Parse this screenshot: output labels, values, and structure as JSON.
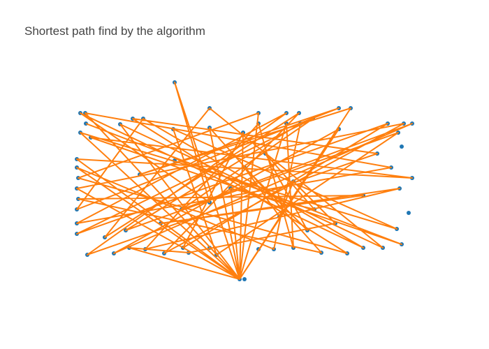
{
  "chart_data": {
    "type": "scatter",
    "title": "Shortest path find by the algorithm",
    "xlim": [
      0,
      500
    ],
    "ylim": [
      0,
      320
    ],
    "series": [
      {
        "mode": "markers",
        "color": "#1f77b4",
        "x": [
          150,
          15,
          22,
          200,
          270,
          310,
          328,
          385,
          402,
          23,
          90,
          105,
          72,
          200,
          270,
          310,
          330,
          348,
          455,
          478,
          490,
          15,
          30,
          148,
          248,
          385,
          470,
          10,
          10,
          12,
          10,
          12,
          10,
          10,
          10,
          25,
          63,
          85,
          108,
          135,
          162,
          170,
          200,
          210,
          270,
          292,
          320,
          360,
          397,
          420,
          448,
          475,
          468,
          485,
          490,
          472,
          475,
          460,
          50,
          80,
          130,
          160,
          200,
          230,
          250,
          280,
          320,
          350,
          380,
          420,
          440,
          100,
          150,
          300,
          340,
          243,
          250
        ],
        "values": [
          302,
          258,
          258,
          265,
          258,
          258,
          258,
          265,
          265,
          243,
          250,
          250,
          242,
          237,
          243,
          243,
          243,
          250,
          243,
          243,
          243,
          230,
          223,
          235,
          230,
          235,
          230,
          192,
          180,
          165,
          150,
          135,
          120,
          100,
          85,
          55,
          57,
          65,
          63,
          57,
          65,
          58,
          65,
          55,
          63,
          63,
          65,
          58,
          57,
          65,
          65,
          70,
          92,
          115,
          165,
          150,
          210,
          180,
          80,
          90,
          100,
          120,
          130,
          150,
          180,
          200,
          160,
          120,
          100,
          140,
          200,
          170,
          190,
          110,
          90,
          20,
          20
        ]
      },
      {
        "mode": "lines",
        "color": "#ff7f0e",
        "x": [
          23,
          475,
          30,
          490,
          10,
          243,
          150,
          200,
          15,
          420,
          105,
          10,
          385,
          100,
          402,
          243,
          22,
          460,
          10,
          310,
          25,
          440,
          90,
          397,
          12,
          270,
          243,
          72,
          448,
          200,
          50,
          328,
          135,
          478,
          10,
          243,
          385,
          63,
          490,
          160,
          348,
          10,
          455,
          162,
          248,
          243,
          15,
          468,
          148,
          210,
          470,
          80,
          330,
          292,
          10,
          243,
          200,
          360,
          12,
          420,
          130,
          472,
          108,
          270,
          320,
          310,
          243,
          230,
          350,
          280,
          340,
          250,
          300,
          320,
          380,
          170,
          85,
          243
        ],
        "values": [
          243,
          70,
          223,
          165,
          192,
          20,
          302,
          130,
          258,
          65,
          250,
          120,
          265,
          170,
          265,
          20,
          258,
          180,
          100,
          258,
          55,
          200,
          250,
          57,
          165,
          258,
          20,
          242,
          65,
          265,
          80,
          258,
          57,
          243,
          150,
          20,
          235,
          57,
          243,
          120,
          250,
          85,
          243,
          65,
          230,
          20,
          230,
          92,
          235,
          55,
          230,
          90,
          243,
          63,
          180,
          20,
          237,
          58,
          135,
          140,
          100,
          150,
          63,
          243,
          65,
          243,
          20,
          150,
          120,
          200,
          90,
          180,
          110,
          160,
          100,
          58,
          65,
          20
        ]
      }
    ]
  }
}
